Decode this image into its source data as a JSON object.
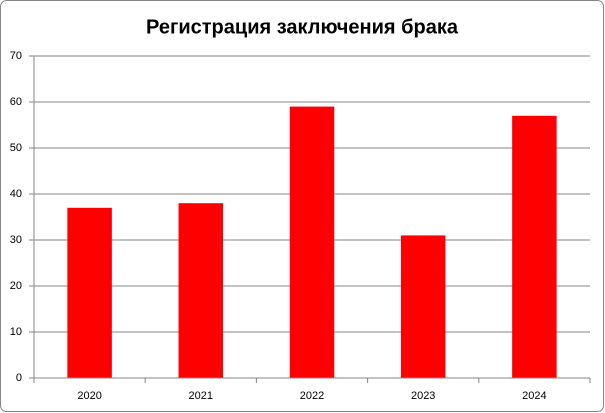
{
  "chart_data": {
    "type": "bar",
    "title": "Регистрация заключения брака",
    "categories": [
      "2020",
      "2021",
      "2022",
      "2023",
      "2024"
    ],
    "values": [
      37,
      38,
      59,
      31,
      57
    ],
    "color": "#ff0000",
    "ylim": [
      0,
      70
    ],
    "yticks": [
      0,
      10,
      20,
      30,
      40,
      50,
      60,
      70
    ],
    "grid": true
  }
}
